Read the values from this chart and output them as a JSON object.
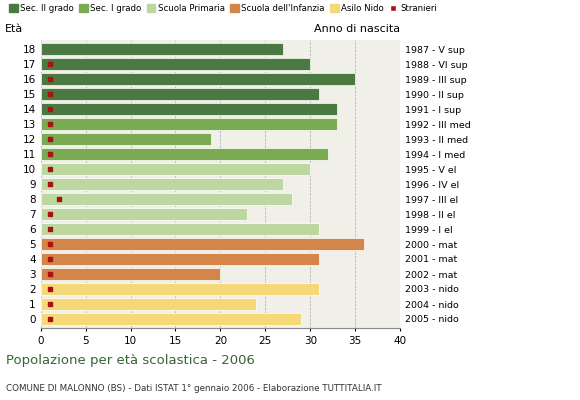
{
  "ages": [
    18,
    17,
    16,
    15,
    14,
    13,
    12,
    11,
    10,
    9,
    8,
    7,
    6,
    5,
    4,
    3,
    2,
    1,
    0
  ],
  "years": [
    "1987 - V sup",
    "1988 - VI sup",
    "1989 - III sup",
    "1990 - II sup",
    "1991 - I sup",
    "1992 - III med",
    "1993 - II med",
    "1994 - I med",
    "1995 - V el",
    "1996 - IV el",
    "1997 - III el",
    "1998 - II el",
    "1999 - I el",
    "2000 - mat",
    "2001 - mat",
    "2002 - mat",
    "2003 - nido",
    "2004 - nido",
    "2005 - nido"
  ],
  "values": [
    27,
    30,
    35,
    31,
    33,
    33,
    19,
    32,
    30,
    27,
    28,
    23,
    31,
    36,
    31,
    20,
    31,
    24,
    29
  ],
  "categories": {
    "sec2": [
      18,
      17,
      16,
      15,
      14
    ],
    "sec1": [
      13,
      12,
      11
    ],
    "primaria": [
      10,
      9,
      8,
      7,
      6
    ],
    "infanzia": [
      5,
      4,
      3
    ],
    "nido": [
      2,
      1,
      0
    ]
  },
  "colors": {
    "sec2": "#4a7a42",
    "sec1": "#7aaa52",
    "primaria": "#bcd8a0",
    "infanzia": "#d4854a",
    "nido": "#f5d878",
    "stranieri": "#aa1111"
  },
  "stranieri_x": [
    0,
    1,
    1,
    1,
    1,
    1,
    1,
    1,
    1,
    1,
    2,
    1,
    1,
    1,
    1,
    1,
    1,
    1,
    1
  ],
  "legend_labels": [
    "Sec. II grado",
    "Sec. I grado",
    "Scuola Primaria",
    "Scuola dell'Infanzia",
    "Asilo Nido",
    "Stranieri"
  ],
  "title": "Popolazione per età scolastica - 2006",
  "subtitle": "COMUNE DI MALONNO (BS) - Dati ISTAT 1° gennaio 2006 - Elaborazione TUTTITALIA.IT",
  "label_eta": "Età",
  "label_anno": "Anno di nascita",
  "xlim": [
    0,
    40
  ],
  "xticks": [
    0,
    5,
    10,
    15,
    20,
    25,
    30,
    35,
    40
  ],
  "bg_color": "#ffffff",
  "plot_bg": "#f0f0e8"
}
